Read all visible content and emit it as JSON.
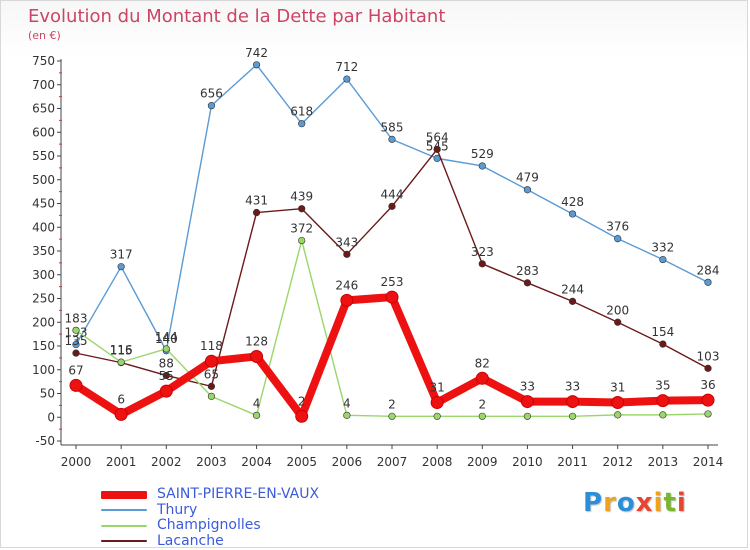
{
  "header": {
    "title": "Evolution du Montant de la Dette par Habitant",
    "subtitle": "(en €)"
  },
  "logo": {
    "letters": [
      "P",
      "r",
      "o",
      "x",
      "i",
      "t",
      "i"
    ],
    "colors": [
      "#2a8fd8",
      "#f2a11c",
      "#2a8fd8",
      "#e8452e",
      "#f2a11c",
      "#79b52f",
      "#e8452e"
    ]
  },
  "chart_data": {
    "type": "line",
    "x": [
      "2000",
      "2001",
      "2002",
      "2003",
      "2004",
      "2005",
      "2006",
      "2007",
      "2008",
      "2009",
      "2010",
      "2011",
      "2012",
      "2013",
      "2014"
    ],
    "ylim": [
      -50,
      750
    ],
    "yticks": [
      "-50",
      "0",
      "50",
      "100",
      "150",
      "200",
      "250",
      "300",
      "350",
      "400",
      "450",
      "500",
      "550",
      "600",
      "650",
      "700",
      "750"
    ],
    "grid": false,
    "legend_position": "bottom-left",
    "series": [
      {
        "name": "Thury",
        "color": "#5a9bd3",
        "values": [
          153,
          317,
          140,
          656,
          742,
          618,
          712,
          585,
          545,
          529,
          479,
          428,
          376,
          332,
          284
        ],
        "labels": [
          "153",
          "317",
          "140",
          "656",
          "742",
          "618",
          "712",
          "585",
          "545",
          "529",
          "479",
          "428",
          "376",
          "332",
          "284"
        ]
      },
      {
        "name": "Lacanche",
        "color": "#6b1a1a",
        "values": [
          135,
          115,
          88,
          65,
          431,
          439,
          343,
          444,
          564,
          323,
          283,
          244,
          200,
          154,
          103
        ],
        "labels": [
          "135",
          "115",
          "88",
          "65",
          "431",
          "439",
          "343",
          "444",
          "564",
          "323",
          "283",
          "244",
          "200",
          "154",
          "103"
        ]
      },
      {
        "name": "Champignolles",
        "color": "#9bd66a",
        "values": [
          183,
          116,
          144,
          44,
          4,
          372,
          4,
          2,
          2,
          2,
          2,
          2,
          5,
          5,
          7
        ],
        "labels": [
          "183",
          "116",
          "144",
          "",
          "4",
          "372",
          "4",
          "2",
          "",
          "2",
          "",
          "",
          "",
          "",
          ""
        ]
      },
      {
        "name": "SAINT-PIERRE-EN-VAUX",
        "color": "#ee1111",
        "values": [
          67,
          6,
          55,
          118,
          128,
          2,
          246,
          253,
          31,
          82,
          33,
          33,
          31,
          35,
          36
        ],
        "labels": [
          "67",
          "6",
          "55",
          "118",
          "128",
          "2",
          "246",
          "253",
          "31",
          "82",
          "33",
          "33",
          "31",
          "35",
          "36"
        ]
      }
    ],
    "legend": [
      {
        "name": "SAINT-PIERRE-EN-VAUX",
        "color": "#ee1111"
      },
      {
        "name": "Thury",
        "color": "#5a9bd3"
      },
      {
        "name": "Champignolles",
        "color": "#9bd66a"
      },
      {
        "name": "Lacanche",
        "color": "#6b1a1a"
      }
    ]
  }
}
